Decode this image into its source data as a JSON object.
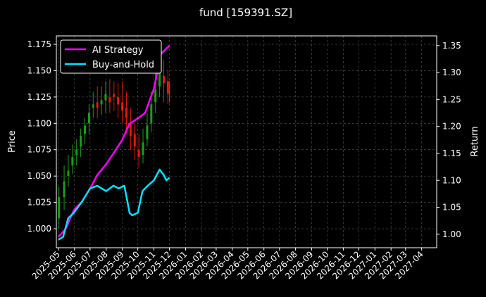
{
  "chart_data": {
    "type": "line",
    "title": "fund [159391.SZ]",
    "ylabel_left": "Price",
    "ylabel_right": "Return",
    "grid": true,
    "legend_position": "top-left",
    "colors": {
      "background": "#000000",
      "ai_strategy": "#ff00ff",
      "buy_and_hold": "#00e5ff",
      "candle_up": "#1a9e1a",
      "candle_down": "#e01a0a",
      "grid": "#555555"
    },
    "x_ticks": [
      "2025-05",
      "2025-06",
      "2025-07",
      "2025-08",
      "2025-09",
      "2025-10",
      "2025-11",
      "2025-12",
      "2026-01",
      "2026-02",
      "2026-03",
      "2026-04",
      "2026-05",
      "2026-06",
      "2026-07",
      "2026-08",
      "2026-09",
      "2026-10",
      "2026-11",
      "2026-12",
      "2027-01",
      "2027-02",
      "2027-03",
      "2027-04"
    ],
    "x_range": [
      "2025-04-27",
      "2027-04-30"
    ],
    "y_left_ticks": [
      "1.000",
      "1.025",
      "1.050",
      "1.075",
      "1.100",
      "1.125",
      "1.150",
      "1.175"
    ],
    "y_left_range": [
      0.982,
      1.183
    ],
    "y_right_ticks": [
      "1.00",
      "1.05",
      "1.10",
      "1.15",
      "1.20",
      "1.25",
      "1.30",
      "1.35"
    ],
    "y_right_range": [
      0.975,
      1.368
    ],
    "price_series": {
      "name": "Price",
      "dates": [
        "2025-05-02",
        "2025-05-12",
        "2025-05-20",
        "2025-05-28",
        "2025-06-05",
        "2025-06-13",
        "2025-06-21",
        "2025-06-29",
        "2025-07-07",
        "2025-07-15",
        "2025-07-23",
        "2025-07-31",
        "2025-08-08",
        "2025-08-16",
        "2025-08-24",
        "2025-09-01",
        "2025-09-09",
        "2025-09-17",
        "2025-09-25",
        "2025-10-03",
        "2025-10-11",
        "2025-10-19",
        "2025-10-27",
        "2025-11-04",
        "2025-11-12",
        "2025-11-20",
        "2025-11-28",
        "2025-12-01"
      ],
      "open": [
        1.01,
        1.03,
        1.05,
        1.06,
        1.07,
        1.078,
        1.09,
        1.1,
        1.115,
        1.12,
        1.118,
        1.122,
        1.125,
        1.128,
        1.125,
        1.12,
        1.115,
        1.1,
        1.09,
        1.075,
        1.07,
        1.085,
        1.1,
        1.12,
        1.135,
        1.145,
        1.14,
        1.13
      ],
      "close": [
        1.03,
        1.045,
        1.055,
        1.068,
        1.075,
        1.088,
        1.098,
        1.11,
        1.118,
        1.115,
        1.122,
        1.128,
        1.12,
        1.125,
        1.118,
        1.112,
        1.105,
        1.088,
        1.078,
        1.068,
        1.082,
        1.098,
        1.118,
        1.132,
        1.148,
        1.138,
        1.128,
        1.13
      ],
      "high": [
        1.04,
        1.06,
        1.07,
        1.08,
        1.085,
        1.095,
        1.105,
        1.118,
        1.13,
        1.135,
        1.135,
        1.14,
        1.142,
        1.14,
        1.138,
        1.14,
        1.13,
        1.115,
        1.1,
        1.09,
        1.095,
        1.11,
        1.13,
        1.15,
        1.165,
        1.16,
        1.15,
        1.14
      ],
      "low": [
        1.0,
        1.018,
        1.04,
        1.052,
        1.06,
        1.068,
        1.08,
        1.09,
        1.105,
        1.105,
        1.108,
        1.11,
        1.11,
        1.112,
        1.105,
        1.1,
        1.09,
        1.075,
        1.065,
        1.058,
        1.062,
        1.078,
        1.092,
        1.11,
        1.125,
        1.12,
        1.118,
        1.12
      ]
    },
    "series": [
      {
        "name": "AI Strategy",
        "axis": "right",
        "dates": [
          "2025-05-01",
          "2025-05-15",
          "2025-05-31",
          "2025-06-15",
          "2025-07-01",
          "2025-07-15",
          "2025-08-01",
          "2025-08-15",
          "2025-09-01",
          "2025-09-15",
          "2025-10-01",
          "2025-10-15",
          "2025-11-01",
          "2025-11-15",
          "2025-12-01"
        ],
        "values": [
          0.995,
          1.01,
          1.045,
          1.06,
          1.085,
          1.11,
          1.13,
          1.15,
          1.175,
          1.205,
          1.215,
          1.225,
          1.27,
          1.335,
          1.35
        ]
      },
      {
        "name": "Buy-and-Hold",
        "axis": "right",
        "dates": [
          "2025-05-01",
          "2025-05-10",
          "2025-05-20",
          "2025-05-31",
          "2025-06-15",
          "2025-07-01",
          "2025-07-15",
          "2025-08-01",
          "2025-08-15",
          "2025-08-25",
          "2025-09-05",
          "2025-09-15",
          "2025-09-20",
          "2025-10-01",
          "2025-10-10",
          "2025-10-20",
          "2025-11-01",
          "2025-11-12",
          "2025-11-20",
          "2025-11-25",
          "2025-12-01"
        ],
        "values": [
          0.99,
          0.995,
          1.03,
          1.04,
          1.06,
          1.085,
          1.09,
          1.08,
          1.09,
          1.085,
          1.09,
          1.04,
          1.035,
          1.04,
          1.08,
          1.09,
          1.1,
          1.12,
          1.11,
          1.1,
          1.105
        ]
      }
    ]
  }
}
